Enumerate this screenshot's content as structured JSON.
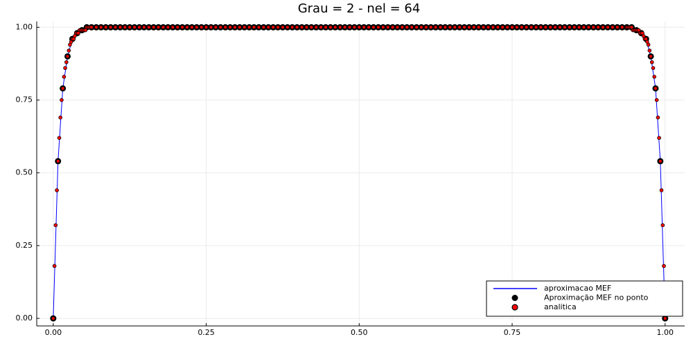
{
  "chart_data": {
    "type": "line",
    "title": "Grau = 2 - nel = 64",
    "xlim": [
      -0.027,
      1.032
    ],
    "ylim": [
      -0.026,
      1.02
    ],
    "xticks": [
      {
        "value": 0,
        "label": "0.00"
      },
      {
        "value": 0.25,
        "label": "0.25"
      },
      {
        "value": 0.5,
        "label": "0.50"
      },
      {
        "value": 0.75,
        "label": "0.75"
      },
      {
        "value": 1,
        "label": "1.00"
      }
    ],
    "yticks": [
      {
        "value": 0,
        "label": "0.00"
      },
      {
        "value": 0.25,
        "label": "0.25"
      },
      {
        "value": 0.5,
        "label": "0.50"
      },
      {
        "value": 0.75,
        "label": "0.75"
      },
      {
        "value": 1,
        "label": "1.00"
      }
    ],
    "grid": true,
    "legend": "lower right",
    "x": [
      0,
      0.0078,
      0.0156,
      0.0234,
      0.0313,
      0.0391,
      0.0469,
      0.0547,
      0.0625,
      0.0703,
      0.0781,
      0.0859,
      0.0938,
      0.1016,
      0.1094,
      0.1172,
      0.125,
      0.1328,
      0.1406,
      0.1484,
      0.1563,
      0.1641,
      0.1719,
      0.1797,
      0.1875,
      0.1953,
      0.2031,
      0.2109,
      0.2188,
      0.2266,
      0.2344,
      0.2422,
      0.25,
      0.2578,
      0.2656,
      0.2734,
      0.2813,
      0.2891,
      0.2969,
      0.3047,
      0.3125,
      0.3203,
      0.3281,
      0.3359,
      0.3438,
      0.3516,
      0.3594,
      0.3672,
      0.375,
      0.3828,
      0.3906,
      0.3984,
      0.4063,
      0.4141,
      0.4219,
      0.4297,
      0.4375,
      0.4453,
      0.4531,
      0.4609,
      0.4688,
      0.4766,
      0.4844,
      0.4922,
      0.5,
      0.5078,
      0.5156,
      0.5234,
      0.5313,
      0.5391,
      0.5469,
      0.5547,
      0.5625,
      0.5703,
      0.5781,
      0.5859,
      0.5938,
      0.6016,
      0.6094,
      0.6172,
      0.625,
      0.6328,
      0.6406,
      0.6484,
      0.6563,
      0.6641,
      0.6719,
      0.6797,
      0.6875,
      0.6953,
      0.7031,
      0.7109,
      0.7188,
      0.7266,
      0.7344,
      0.7422,
      0.75,
      0.7578,
      0.7656,
      0.7734,
      0.7813,
      0.7891,
      0.7969,
      0.8047,
      0.8125,
      0.8203,
      0.8281,
      0.8359,
      0.8438,
      0.8516,
      0.8594,
      0.8672,
      0.875,
      0.8828,
      0.8906,
      0.8984,
      0.9063,
      0.9141,
      0.9219,
      0.9297,
      0.9375,
      0.9453,
      0.9531,
      0.9609,
      0.9688,
      0.9766,
      0.9844,
      0.9922,
      1
    ],
    "series": [
      {
        "name": "aproximacao MEF",
        "color": "#0000ff",
        "mode": "line",
        "values": [
          0,
          0.54,
          0.79,
          0.9,
          0.96,
          0.98,
          0.99,
          1,
          1,
          1,
          1,
          1,
          1,
          1,
          1,
          1,
          1,
          1,
          1,
          1,
          1,
          1,
          1,
          1,
          1,
          1,
          1,
          1,
          1,
          1,
          1,
          1,
          1,
          1,
          1,
          1,
          1,
          1,
          1,
          1,
          1,
          1,
          1,
          1,
          1,
          1,
          1,
          1,
          1,
          1,
          1,
          1,
          1,
          1,
          1,
          1,
          1,
          1,
          1,
          1,
          1,
          1,
          1,
          1,
          1,
          1,
          1,
          1,
          1,
          1,
          1,
          1,
          1,
          1,
          1,
          1,
          1,
          1,
          1,
          1,
          1,
          1,
          1,
          1,
          1,
          1,
          1,
          1,
          1,
          1,
          1,
          1,
          1,
          1,
          1,
          1,
          1,
          1,
          1,
          1,
          1,
          1,
          1,
          1,
          1,
          1,
          1,
          1,
          1,
          1,
          1,
          1,
          1,
          1,
          1,
          1,
          1,
          1,
          1,
          1,
          1,
          1,
          0.99,
          0.98,
          0.96,
          0.9,
          0.79,
          0.54,
          0
        ]
      },
      {
        "name": "Aproximação MEF no ponto",
        "color": "#000000",
        "mode": "markers",
        "values": [
          0,
          0.54,
          0.79,
          0.9,
          0.96,
          0.98,
          0.99,
          1,
          1,
          1,
          1,
          1,
          1,
          1,
          1,
          1,
          1,
          1,
          1,
          1,
          1,
          1,
          1,
          1,
          1,
          1,
          1,
          1,
          1,
          1,
          1,
          1,
          1,
          1,
          1,
          1,
          1,
          1,
          1,
          1,
          1,
          1,
          1,
          1,
          1,
          1,
          1,
          1,
          1,
          1,
          1,
          1,
          1,
          1,
          1,
          1,
          1,
          1,
          1,
          1,
          1,
          1,
          1,
          1,
          1,
          1,
          1,
          1,
          1,
          1,
          1,
          1,
          1,
          1,
          1,
          1,
          1,
          1,
          1,
          1,
          1,
          1,
          1,
          1,
          1,
          1,
          1,
          1,
          1,
          1,
          1,
          1,
          1,
          1,
          1,
          1,
          1,
          1,
          1,
          1,
          1,
          1,
          1,
          1,
          1,
          1,
          1,
          1,
          1,
          1,
          1,
          1,
          1,
          1,
          1,
          1,
          1,
          1,
          1,
          1,
          1,
          1,
          0.99,
          0.98,
          0.96,
          0.9,
          0.79,
          0.54,
          0
        ]
      },
      {
        "name": "analitica",
        "color": "#ff0000",
        "mode": "markers",
        "x": [
          0,
          0.002,
          0.0039,
          0.0059,
          0.0078,
          0.0098,
          0.0117,
          0.0137,
          0.0156,
          0.0176,
          0.0195,
          0.0215,
          0.0234,
          0.0254,
          0.0273,
          0.0293,
          0.0313,
          0.0332,
          0.0352,
          0.0371,
          0.0391,
          0.041,
          0.043,
          0.0449,
          0.0469,
          0.0488,
          0.0508,
          0.0527,
          0.0547,
          0.0566,
          0.0586,
          0.0605,
          0.0625,
          0.0703,
          0.0781,
          0.0859,
          0.0938,
          0.1016,
          0.1094,
          0.1172,
          0.125,
          0.1328,
          0.1406,
          0.1484,
          0.1563,
          0.1641,
          0.1719,
          0.1797,
          0.1875,
          0.1953,
          0.2031,
          0.2109,
          0.2188,
          0.2266,
          0.2344,
          0.2422,
          0.25,
          0.2578,
          0.2656,
          0.2734,
          0.2813,
          0.2891,
          0.2969,
          0.3047,
          0.3125,
          0.3203,
          0.3281,
          0.3359,
          0.3438,
          0.3516,
          0.3594,
          0.3672,
          0.375,
          0.3828,
          0.3906,
          0.3984,
          0.4063,
          0.4141,
          0.4219,
          0.4297,
          0.4375,
          0.4453,
          0.4531,
          0.4609,
          0.4688,
          0.4766,
          0.4844,
          0.4922,
          0.5,
          0.5078,
          0.5156,
          0.5234,
          0.5313,
          0.5391,
          0.5469,
          0.5547,
          0.5625,
          0.5703,
          0.5781,
          0.5859,
          0.5938,
          0.6016,
          0.6094,
          0.6172,
          0.625,
          0.6328,
          0.6406,
          0.6484,
          0.6563,
          0.6641,
          0.6719,
          0.6797,
          0.6875,
          0.6953,
          0.7031,
          0.7109,
          0.7188,
          0.7266,
          0.7344,
          0.7422,
          0.75,
          0.7578,
          0.7656,
          0.7734,
          0.7813,
          0.7891,
          0.7969,
          0.8047,
          0.8125,
          0.8203,
          0.8281,
          0.8359,
          0.8438,
          0.8516,
          0.8594,
          0.8672,
          0.875,
          0.8828,
          0.8906,
          0.8984,
          0.9063,
          0.9141,
          0.9219,
          0.9297,
          0.9375,
          0.9395,
          0.9414,
          0.9434,
          0.9453,
          0.9473,
          0.9492,
          0.9512,
          0.9531,
          0.9551,
          0.957,
          0.959,
          0.9609,
          0.9629,
          0.9648,
          0.9668,
          0.9688,
          0.9707,
          0.9727,
          0.9746,
          0.9766,
          0.9785,
          0.9805,
          0.9824,
          0.9844,
          0.9863,
          0.9883,
          0.9902,
          0.9922,
          0.9941,
          0.9961,
          0.998,
          1
        ],
        "values": [
          0,
          0.18,
          0.32,
          0.44,
          0.54,
          0.62,
          0.69,
          0.75,
          0.79,
          0.83,
          0.86,
          0.88,
          0.9,
          0.92,
          0.94,
          0.95,
          0.96,
          0.96,
          0.97,
          0.98,
          0.98,
          0.98,
          0.99,
          0.99,
          0.99,
          0.99,
          0.99,
          0.99,
          1,
          1,
          1,
          1,
          1,
          1,
          1,
          1,
          1,
          1,
          1,
          1,
          1,
          1,
          1,
          1,
          1,
          1,
          1,
          1,
          1,
          1,
          1,
          1,
          1,
          1,
          1,
          1,
          1,
          1,
          1,
          1,
          1,
          1,
          1,
          1,
          1,
          1,
          1,
          1,
          1,
          1,
          1,
          1,
          1,
          1,
          1,
          1,
          1,
          1,
          1,
          1,
          1,
          1,
          1,
          1,
          1,
          1,
          1,
          1,
          1,
          1,
          1,
          1,
          1,
          1,
          1,
          1,
          1,
          1,
          1,
          1,
          1,
          1,
          1,
          1,
          1,
          1,
          1,
          1,
          1,
          1,
          1,
          1,
          1,
          1,
          1,
          1,
          1,
          1,
          1,
          1,
          1,
          1,
          1,
          1,
          1,
          1,
          1,
          1,
          1,
          1,
          1,
          1,
          1,
          1,
          1,
          1,
          1,
          1,
          1,
          1,
          1,
          1,
          1,
          1,
          1,
          1,
          1,
          1,
          1,
          0.99,
          0.99,
          0.99,
          0.99,
          0.99,
          0.99,
          0.98,
          0.98,
          0.98,
          0.97,
          0.96,
          0.96,
          0.95,
          0.94,
          0.92,
          0.9,
          0.88,
          0.86,
          0.83,
          0.79,
          0.75,
          0.69,
          0.62,
          0.54,
          0.44,
          0.32,
          0.18,
          0
        ]
      }
    ]
  }
}
